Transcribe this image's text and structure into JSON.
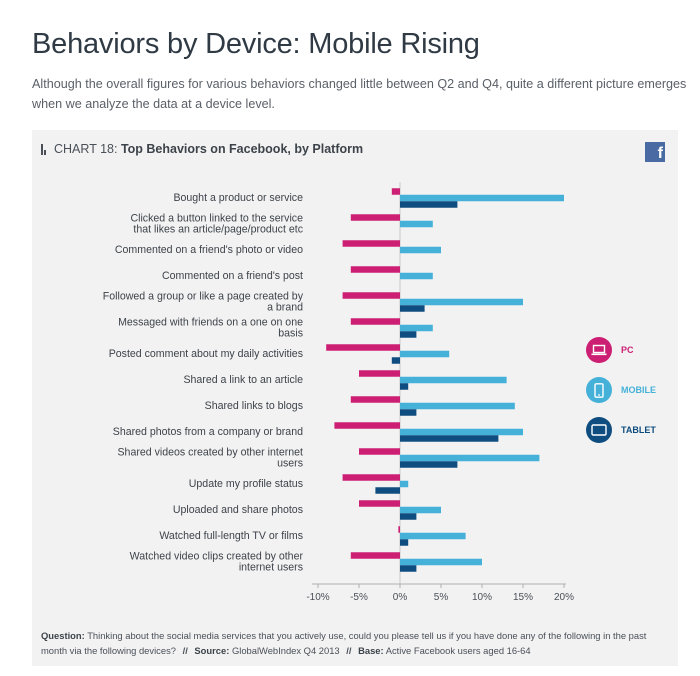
{
  "page": {
    "title": "Behaviors by Device: Mobile Rising",
    "intro": "Although the overall figures for various behaviors changed little between Q2 and Q4, quite a different picture emerges when we analyze the data at a device level."
  },
  "chart_header": {
    "prefix": "CHART 18: ",
    "title": "Top Behaviors on Facebook, by Platform",
    "brand_icon": "facebook-icon",
    "brand_glyph": "f"
  },
  "chart_data": {
    "type": "bar",
    "orientation": "horizontal",
    "title": "Top Behaviors on Facebook, by Platform",
    "categories": [
      "Bought a product or service",
      "Clicked a button linked to the service that likes an article/page/product etc",
      "Commented on a friend's photo or video",
      "Commented on a friend's post",
      "Followed a group or like a page created by a brand",
      "Messaged with friends on a one on one basis",
      "Posted comment about my daily activities",
      "Shared a link to an article",
      "Shared links to blogs",
      "Shared photos from a company or brand",
      "Shared videos created by other internet users",
      "Update my profile status",
      "Uploaded and share photos",
      "Watched full-length TV or films",
      "Watched video clips created by other internet users"
    ],
    "series": [
      {
        "name": "PC",
        "color": "#cc1f74",
        "values": [
          -1,
          -6,
          -7,
          -6,
          -7,
          -6,
          -9,
          -5,
          -6,
          -8,
          -5,
          -7,
          -5,
          -0.2,
          -6
        ]
      },
      {
        "name": "MOBILE",
        "color": "#45b1d8",
        "values": [
          20,
          4,
          5,
          4,
          15,
          4,
          6,
          13,
          14,
          15,
          17,
          1,
          5,
          8,
          10
        ]
      },
      {
        "name": "TABLET",
        "color": "#0f4d80",
        "values": [
          7,
          0,
          0,
          0,
          3,
          2,
          -1,
          1,
          2,
          12,
          7,
          -3,
          2,
          1,
          2
        ]
      }
    ],
    "xlim": [
      -10,
      20
    ],
    "x_ticks": [
      "-10%",
      "-5%",
      "0%",
      "5%",
      "10%",
      "15%",
      "20%"
    ],
    "xlabel": "",
    "ylabel": "",
    "grid": false,
    "legend_position": "right"
  },
  "legend": [
    {
      "label": "PC",
      "color": "#cc1f74",
      "icon": "laptop-icon"
    },
    {
      "label": "MOBILE",
      "color": "#45b1d8",
      "icon": "smartphone-icon"
    },
    {
      "label": "TABLET",
      "color": "#0f4d80",
      "icon": "tablet-icon"
    }
  ],
  "footnote": {
    "question_label": "Question:",
    "question_text": "Thinking about the social media services that you actively use, could you please tell us if you have done any of the following in the past month via the following devices?",
    "separator": "//",
    "source_label": "Source:",
    "source_text": "GlobalWebIndex Q4 2013",
    "base_label": "Base:",
    "base_text": "Active Facebook users aged 16-64"
  }
}
